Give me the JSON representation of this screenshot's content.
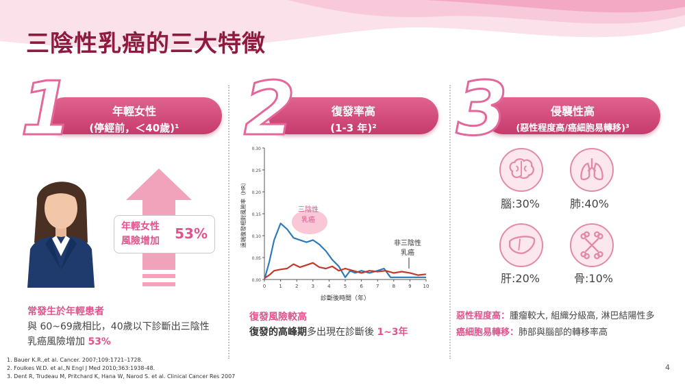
{
  "title": "三陰性乳癌的三大特徵",
  "sections": [
    {
      "number": "1",
      "pill_line1": "年輕女性",
      "pill_line2": "(停經前，＜40歲)¹",
      "arrow_label": "年輕女性\n風險增加",
      "arrow_value": "53%",
      "heading": "常發生於年輕患者",
      "desc_line1": "與 60~69歲相比，40歲以下診斷出三陰性",
      "desc_line2_a": "乳癌風險增加 ",
      "desc_line2_b": "53%"
    },
    {
      "number": "2",
      "pill_line1": "復發率高",
      "pill_line2": "(1-3 年)²",
      "heading": "復發風險較高",
      "desc_bold": "復發的高峰期",
      "desc_mid": "多出現在診斷後 ",
      "desc_pink": "1~3年"
    },
    {
      "number": "3",
      "pill_line1": "侵襲性高",
      "pill_line2": "(惡性程度高/癌細胞易轉移)³",
      "organs": [
        {
          "name": "brain-icon",
          "label": "腦:30%"
        },
        {
          "name": "lung-icon",
          "label": "肺:40%"
        },
        {
          "name": "liver-icon",
          "label": "肝:20%"
        },
        {
          "name": "bone-icon",
          "label": "骨:10%"
        }
      ],
      "line1_pink": "惡性程度高：",
      "line1_text": "腫瘤較大, 組織分級高, 淋巴結陽性多",
      "line2_pink": "癌細胞易轉移：",
      "line2_text": "肺部與腦部的轉移率高"
    }
  ],
  "chart_data": {
    "type": "line",
    "xlabel": "診斷後時間（年）",
    "ylabel": "遠端復發相對風險率（HR）",
    "xlim": [
      0,
      10
    ],
    "ylim": [
      0,
      0.3
    ],
    "xticks": [
      "0",
      "1",
      "2",
      "3",
      "4",
      "5",
      "6",
      "7",
      "8",
      "9",
      "10"
    ],
    "yticks": [
      "0.00",
      "0.05",
      "0.10",
      "0.15",
      "0.20",
      "0.25",
      "0.30"
    ],
    "series": [
      {
        "name": "三陰性乳癌",
        "color": "#2c7ab8",
        "x": [
          0,
          0.3,
          0.6,
          1.0,
          1.4,
          1.8,
          2.2,
          2.6,
          3.0,
          3.4,
          3.8,
          4.2,
          4.6,
          5.0,
          5.3,
          5.6,
          6.0,
          6.5,
          7.0,
          7.4,
          7.8,
          8.2,
          8.6,
          9.0,
          9.5,
          10.0
        ],
        "y": [
          0.0,
          0.04,
          0.09,
          0.128,
          0.115,
          0.095,
          0.09,
          0.085,
          0.09,
          0.08,
          0.065,
          0.045,
          0.03,
          0.005,
          0.02,
          0.015,
          0.02,
          0.015,
          0.02,
          0.025,
          0.005,
          0.005,
          0.005,
          0.005,
          0.005,
          0.005
        ]
      },
      {
        "name": "非三陰性乳癌",
        "color": "#c0392b",
        "x": [
          0,
          0.3,
          0.6,
          1.0,
          1.4,
          1.8,
          2.2,
          2.6,
          3.0,
          3.4,
          3.8,
          4.2,
          4.6,
          5.0,
          5.5,
          6.0,
          6.5,
          7.0,
          7.5,
          8.0,
          8.5,
          9.0,
          9.5,
          10.0
        ],
        "y": [
          0.003,
          0.01,
          0.02,
          0.023,
          0.025,
          0.035,
          0.028,
          0.033,
          0.038,
          0.028,
          0.025,
          0.03,
          0.02,
          0.025,
          0.02,
          0.015,
          0.02,
          0.018,
          0.02,
          0.015,
          0.018,
          0.015,
          0.01,
          0.012
        ]
      }
    ],
    "annotations": [
      {
        "text": "三陰性\n乳癌",
        "color": "#e0538c"
      },
      {
        "text": "非三陰性\n乳癌",
        "color": "#333333"
      }
    ]
  },
  "references": [
    "1.   Bauer K.R.,et al. Cancer. 2007;109:1721–1728.",
    "2.   Foulkes W.D. et al.,N Engl J Med 2010;363:1938-48.",
    "3.   Dent R, Trudeau M, Pritchard K, Hana W, Narod S. et al. Clinical Cancer Res 2007"
  ],
  "page_number": "4"
}
